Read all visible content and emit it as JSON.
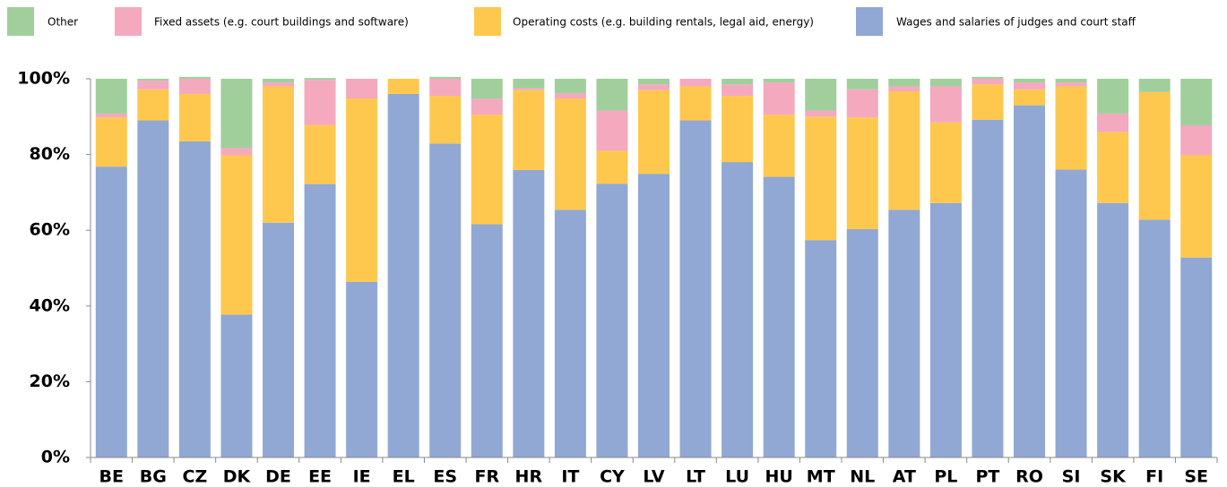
{
  "chart_data": {
    "type": "stacked_bar",
    "categories": [
      "BE",
      "BG",
      "CZ",
      "DK",
      "DE",
      "EE",
      "IE",
      "EL",
      "ES",
      "FR",
      "HR",
      "IT",
      "CY",
      "LV",
      "LT",
      "LU",
      "HU",
      "MT",
      "NL",
      "AT",
      "PL",
      "PT",
      "RO",
      "SI",
      "SK",
      "FI",
      "SE"
    ],
    "series": [
      {
        "name": "Wages and salaries of judges and court staff",
        "color": "#90a8d3",
        "values": [
          76.8,
          89,
          83.5,
          37.7,
          62,
          72.2,
          46.4,
          96,
          82.9,
          61.6,
          75.9,
          65.4,
          72.3,
          74.9,
          89,
          78,
          74.1,
          57.4,
          60.3,
          65.4,
          67.2,
          89.2,
          93,
          76,
          67.2,
          62.8,
          52.8
        ]
      },
      {
        "name": "Operating costs (e.g. building rentals, legal aid, energy)",
        "color": "#fec84e",
        "values": [
          13,
          8.2,
          12.5,
          42.1,
          36,
          15.6,
          48.4,
          4,
          12.6,
          28.9,
          21.1,
          29.4,
          8.7,
          22.1,
          9,
          17.5,
          16.4,
          32.6,
          29.5,
          31.3,
          21.3,
          9.3,
          4.2,
          22,
          18.7,
          33.7,
          27
        ]
      },
      {
        "name": "Fixed assets (e.g. court buildings and software)",
        "color": "#f4a9bf",
        "values": [
          1,
          2.3,
          4,
          1.9,
          1,
          11.9,
          5.2,
          0,
          4.5,
          4.2,
          0.5,
          1.4,
          10.6,
          1.5,
          2,
          3,
          8.5,
          1.6,
          7.4,
          1.3,
          9.5,
          1.5,
          1.8,
          1,
          4.9,
          0,
          7.9
        ]
      },
      {
        "name": "Other",
        "color": "#a0cf9c",
        "values": [
          9.2,
          0.5,
          0.5,
          18.3,
          1,
          0.5,
          0,
          0,
          0.5,
          5.3,
          2.5,
          3.8,
          8.4,
          1.5,
          0,
          1.5,
          1,
          8.4,
          2.8,
          2,
          2,
          0.5,
          1,
          1,
          9.2,
          3.5,
          12.3
        ]
      }
    ],
    "ylim": [
      0,
      100
    ],
    "yticks": [
      {
        "value": 0,
        "label": "0%"
      },
      {
        "value": 20,
        "label": "20%"
      },
      {
        "value": 40,
        "label": "40%"
      },
      {
        "value": 60,
        "label": "60%"
      },
      {
        "value": 80,
        "label": "80%"
      },
      {
        "value": 100,
        "label": "100%"
      }
    ],
    "grid": false
  }
}
